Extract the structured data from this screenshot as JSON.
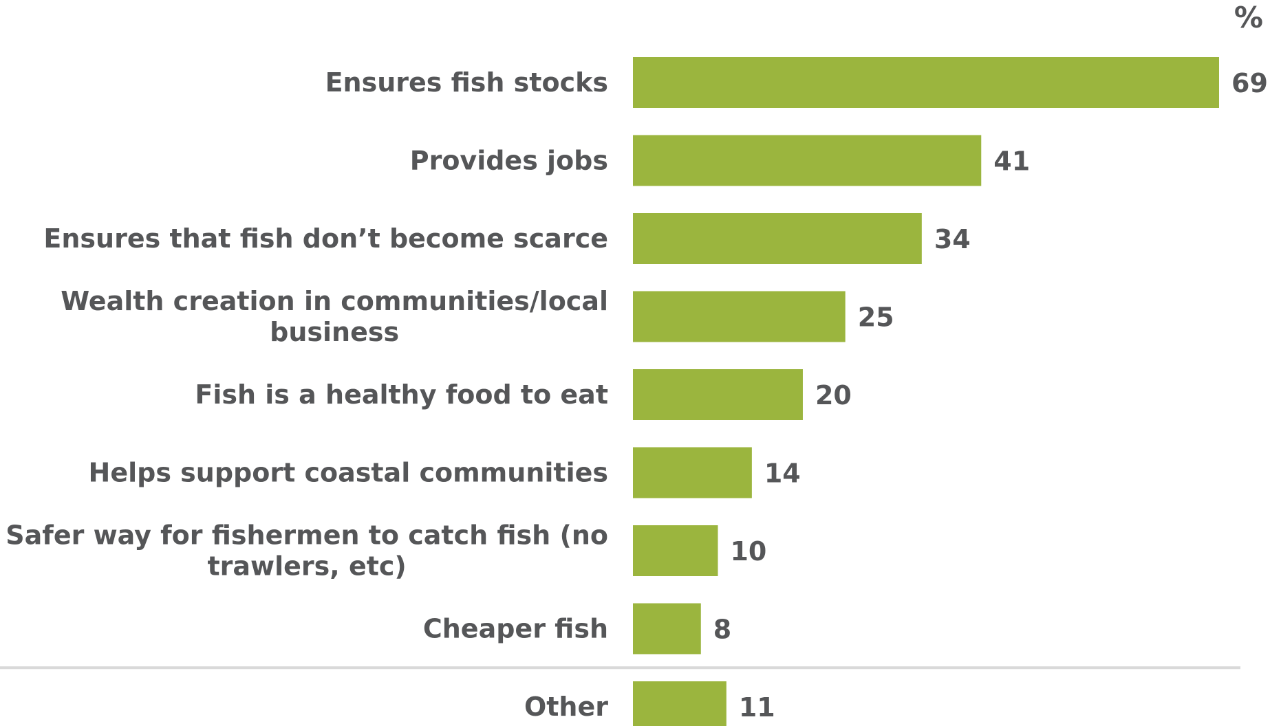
{
  "chart_data": {
    "type": "bar",
    "orientation": "horizontal",
    "unit_label": "%",
    "categories": [
      [
        "Ensures fish stocks"
      ],
      [
        "Provides jobs"
      ],
      [
        "Ensures that fish don’t become scarce"
      ],
      [
        "Wealth creation in communities/local",
        "business"
      ],
      [
        "Fish is a healthy food to eat"
      ],
      [
        "Helps support coastal communities"
      ],
      [
        "Safer way for fishermen to catch fish (no",
        "trawlers, etc)"
      ],
      [
        "Cheaper fish"
      ],
      [
        "Other"
      ]
    ],
    "values": [
      69,
      41,
      34,
      25,
      20,
      14,
      10,
      8,
      11
    ],
    "separator_before_index": 8,
    "xlim": [
      0,
      69
    ],
    "grid": false,
    "legend": "none",
    "colors": {
      "bar": "#9bb53e",
      "text": "#555658",
      "separator": "#d9d9d9"
    }
  }
}
